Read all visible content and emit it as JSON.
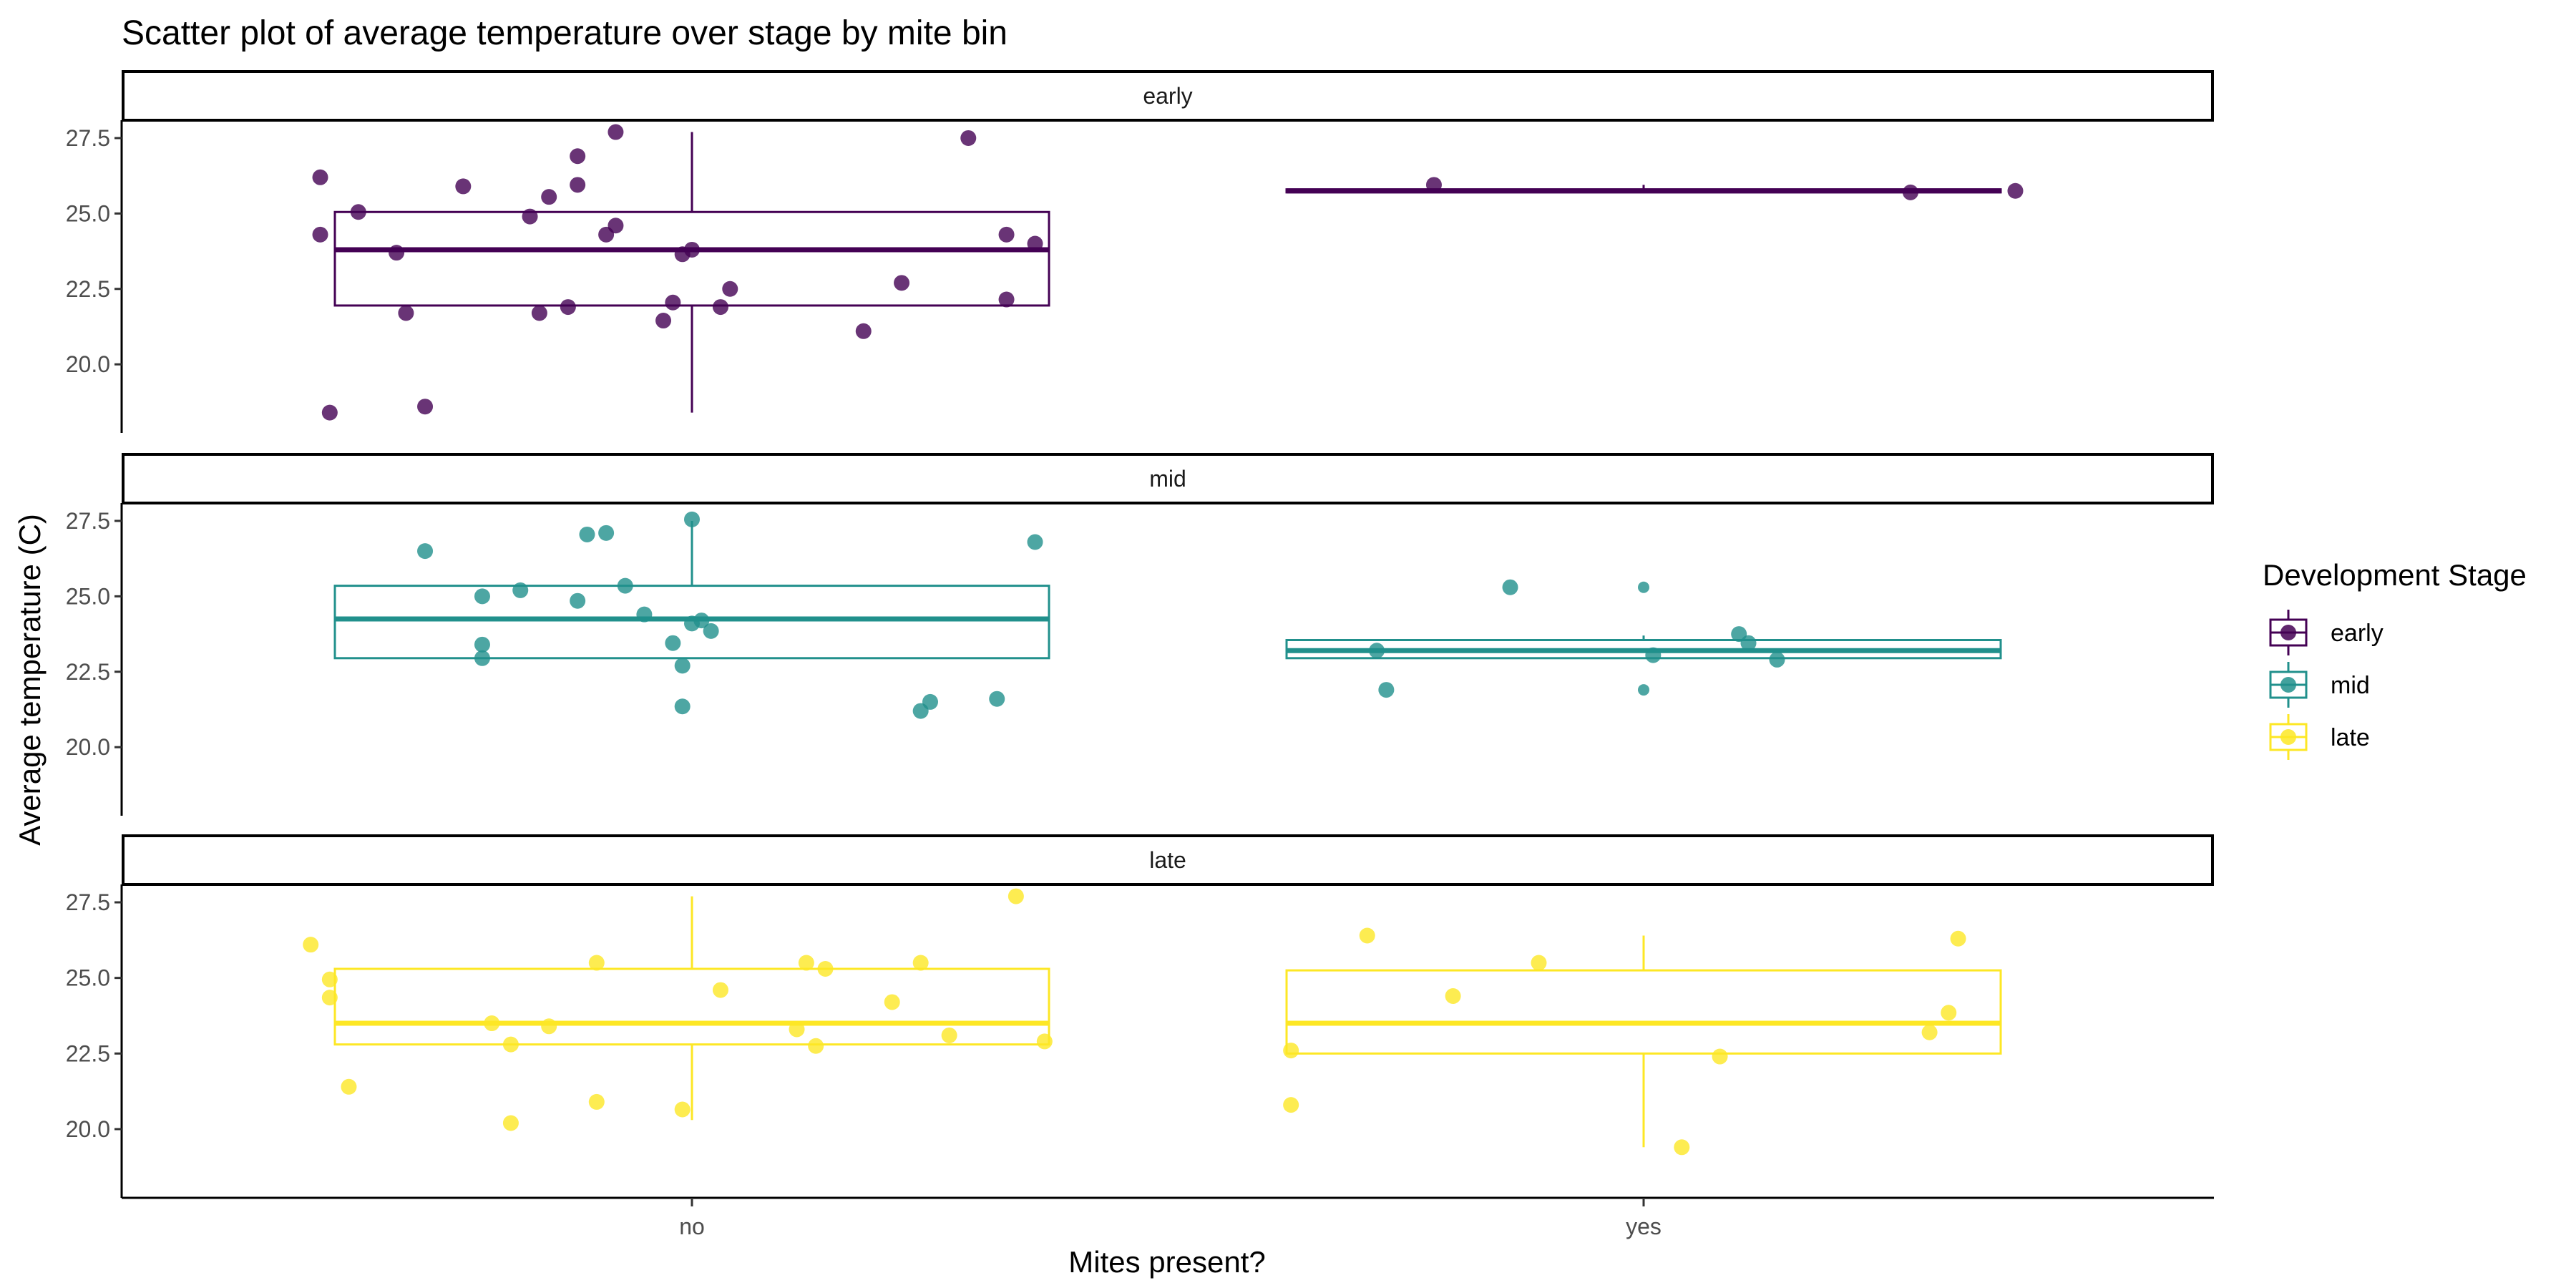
{
  "chart_data": {
    "type": "box+scatter (faceted)",
    "title": "Scatter plot of average temperature over stage by mite bin",
    "xlabel": "Mites present?",
    "ylabel": "Average temperature (C)",
    "categories": [
      "no",
      "yes"
    ],
    "yticks": [
      "20.0",
      "22.5",
      "25.0",
      "27.5"
    ],
    "ytick_values": [
      20.0,
      22.5,
      25.0,
      27.5
    ],
    "ylim": [
      18.0,
      28.2
    ],
    "grid": false,
    "legend": {
      "title": "Development Stage",
      "position": "right",
      "entries": [
        {
          "label": "early",
          "color": "#440154"
        },
        {
          "label": "mid",
          "color": "#21908C"
        },
        {
          "label": "late",
          "color": "#FDE725"
        }
      ]
    },
    "facets": [
      {
        "label": "early",
        "color": "#440154",
        "boxes": [
          {
            "category": "no",
            "q1": 21.95,
            "median": 23.8,
            "q3": 25.05,
            "whisker_low": 18.4,
            "whisker_high": 27.7
          },
          {
            "category": "yes",
            "q1": 25.7,
            "median": 25.75,
            "q3": 25.8,
            "whisker_low": 25.7,
            "whisker_high": 25.95
          }
        ],
        "points": [
          {
            "category": "no",
            "offset": -0.195,
            "y": 26.2
          },
          {
            "category": "no",
            "offset": -0.175,
            "y": 25.05
          },
          {
            "category": "no",
            "offset": -0.12,
            "y": 25.9
          },
          {
            "category": "no",
            "offset": -0.085,
            "y": 24.9
          },
          {
            "category": "no",
            "offset": -0.075,
            "y": 25.55
          },
          {
            "category": "no",
            "offset": -0.06,
            "y": 26.9
          },
          {
            "category": "no",
            "offset": -0.06,
            "y": 25.95
          },
          {
            "category": "no",
            "offset": -0.04,
            "y": 27.7
          },
          {
            "category": "no",
            "offset": -0.045,
            "y": 24.3
          },
          {
            "category": "no",
            "offset": -0.04,
            "y": 24.6
          },
          {
            "category": "no",
            "offset": -0.195,
            "y": 24.3
          },
          {
            "category": "no",
            "offset": -0.155,
            "y": 23.7
          },
          {
            "category": "no",
            "offset": -0.005,
            "y": 23.65
          },
          {
            "category": "no",
            "offset": 0.0,
            "y": 23.8
          },
          {
            "category": "no",
            "offset": 0.02,
            "y": 22.5
          },
          {
            "category": "no",
            "offset": 0.015,
            "y": 21.9
          },
          {
            "category": "no",
            "offset": -0.01,
            "y": 22.05
          },
          {
            "category": "no",
            "offset": -0.015,
            "y": 21.45
          },
          {
            "category": "no",
            "offset": -0.065,
            "y": 21.9
          },
          {
            "category": "no",
            "offset": -0.08,
            "y": 21.7
          },
          {
            "category": "no",
            "offset": -0.15,
            "y": 21.7
          },
          {
            "category": "no",
            "offset": 0.11,
            "y": 22.7
          },
          {
            "category": "no",
            "offset": 0.165,
            "y": 22.15
          },
          {
            "category": "no",
            "offset": 0.165,
            "y": 24.3
          },
          {
            "category": "no",
            "offset": 0.18,
            "y": 24.0
          },
          {
            "category": "no",
            "offset": 0.09,
            "y": 21.1
          },
          {
            "category": "no",
            "offset": 0.145,
            "y": 27.5
          },
          {
            "category": "no",
            "offset": -0.19,
            "y": 18.4
          },
          {
            "category": "no",
            "offset": -0.14,
            "y": 18.6
          },
          {
            "category": "yes",
            "offset": -0.11,
            "y": 25.95
          },
          {
            "category": "yes",
            "offset": 0.14,
            "y": 25.7
          },
          {
            "category": "yes",
            "offset": 0.195,
            "y": 25.75
          }
        ]
      },
      {
        "label": "mid",
        "color": "#21908C",
        "boxes": [
          {
            "category": "no",
            "q1": 22.95,
            "median": 24.25,
            "q3": 25.35,
            "whisker_low": 22.95,
            "whisker_high": 27.5
          },
          {
            "category": "yes",
            "q1": 22.95,
            "median": 23.2,
            "q3": 23.55,
            "whisker_low": 22.95,
            "whisker_high": 23.7
          }
        ],
        "points": [
          {
            "category": "no",
            "offset": -0.14,
            "y": 26.5
          },
          {
            "category": "no",
            "offset": -0.055,
            "y": 27.05
          },
          {
            "category": "no",
            "offset": -0.045,
            "y": 27.1
          },
          {
            "category": "no",
            "offset": 0.0,
            "y": 27.55
          },
          {
            "category": "no",
            "offset": 0.18,
            "y": 26.8
          },
          {
            "category": "no",
            "offset": -0.11,
            "y": 25.0
          },
          {
            "category": "no",
            "offset": -0.09,
            "y": 25.2
          },
          {
            "category": "no",
            "offset": -0.06,
            "y": 24.85
          },
          {
            "category": "no",
            "offset": -0.035,
            "y": 25.35
          },
          {
            "category": "no",
            "offset": -0.025,
            "y": 24.4
          },
          {
            "category": "no",
            "offset": 0.0,
            "y": 24.1
          },
          {
            "category": "no",
            "offset": 0.005,
            "y": 24.2
          },
          {
            "category": "no",
            "offset": 0.01,
            "y": 23.85
          },
          {
            "category": "no",
            "offset": -0.01,
            "y": 23.45
          },
          {
            "category": "no",
            "offset": -0.11,
            "y": 23.4
          },
          {
            "category": "no",
            "offset": -0.11,
            "y": 22.95
          },
          {
            "category": "no",
            "offset": -0.005,
            "y": 22.7
          },
          {
            "category": "no",
            "offset": -0.005,
            "y": 21.35
          },
          {
            "category": "no",
            "offset": 0.12,
            "y": 21.2
          },
          {
            "category": "no",
            "offset": 0.125,
            "y": 21.5
          },
          {
            "category": "no",
            "offset": 0.16,
            "y": 21.6
          },
          {
            "category": "yes",
            "offset": -0.07,
            "y": 25.3
          },
          {
            "category": "yes",
            "offset": -0.14,
            "y": 23.2
          },
          {
            "category": "yes",
            "offset": -0.135,
            "y": 21.9
          },
          {
            "category": "yes",
            "offset": 0.005,
            "y": 23.05
          },
          {
            "category": "yes",
            "offset": 0.05,
            "y": 23.75
          },
          {
            "category": "yes",
            "offset": 0.055,
            "y": 23.45
          },
          {
            "category": "yes",
            "offset": 0.07,
            "y": 22.9
          },
          {
            "category": "yes",
            "offset": 0.0,
            "y": 25.3,
            "outlier": true
          },
          {
            "category": "yes",
            "offset": 0.0,
            "y": 21.9,
            "outlier": true
          }
        ]
      },
      {
        "label": "late",
        "color": "#FDE725",
        "boxes": [
          {
            "category": "no",
            "q1": 22.8,
            "median": 23.5,
            "q3": 25.3,
            "whisker_low": 20.3,
            "whisker_high": 27.7
          },
          {
            "category": "yes",
            "q1": 22.5,
            "median": 23.5,
            "q3": 25.25,
            "whisker_low": 19.4,
            "whisker_high": 26.4
          }
        ],
        "points": [
          {
            "category": "no",
            "offset": -0.2,
            "y": 26.1
          },
          {
            "category": "no",
            "offset": -0.19,
            "y": 24.95
          },
          {
            "category": "no",
            "offset": -0.19,
            "y": 24.35
          },
          {
            "category": "no",
            "offset": -0.05,
            "y": 25.5
          },
          {
            "category": "no",
            "offset": 0.06,
            "y": 25.5
          },
          {
            "category": "no",
            "offset": 0.07,
            "y": 25.3
          },
          {
            "category": "no",
            "offset": 0.12,
            "y": 25.5
          },
          {
            "category": "no",
            "offset": 0.17,
            "y": 27.7
          },
          {
            "category": "no",
            "offset": 0.015,
            "y": 24.6
          },
          {
            "category": "no",
            "offset": 0.105,
            "y": 24.2
          },
          {
            "category": "no",
            "offset": -0.105,
            "y": 23.5
          },
          {
            "category": "no",
            "offset": -0.075,
            "y": 23.4
          },
          {
            "category": "no",
            "offset": 0.055,
            "y": 23.3
          },
          {
            "category": "no",
            "offset": 0.135,
            "y": 23.1
          },
          {
            "category": "no",
            "offset": 0.185,
            "y": 22.9
          },
          {
            "category": "no",
            "offset": -0.095,
            "y": 22.8
          },
          {
            "category": "no",
            "offset": 0.065,
            "y": 22.75
          },
          {
            "category": "no",
            "offset": -0.18,
            "y": 21.4
          },
          {
            "category": "no",
            "offset": -0.05,
            "y": 20.9
          },
          {
            "category": "no",
            "offset": -0.005,
            "y": 20.65
          },
          {
            "category": "no",
            "offset": -0.095,
            "y": 20.2
          },
          {
            "category": "yes",
            "offset": -0.145,
            "y": 26.4
          },
          {
            "category": "yes",
            "offset": -0.055,
            "y": 25.5
          },
          {
            "category": "yes",
            "offset": -0.1,
            "y": 24.4
          },
          {
            "category": "yes",
            "offset": 0.165,
            "y": 26.3
          },
          {
            "category": "yes",
            "offset": 0.16,
            "y": 23.85
          },
          {
            "category": "yes",
            "offset": 0.15,
            "y": 23.2
          },
          {
            "category": "yes",
            "offset": -0.185,
            "y": 22.6
          },
          {
            "category": "yes",
            "offset": 0.04,
            "y": 22.4
          },
          {
            "category": "yes",
            "offset": -0.185,
            "y": 20.8
          },
          {
            "category": "yes",
            "offset": 0.02,
            "y": 19.4
          }
        ]
      }
    ]
  }
}
